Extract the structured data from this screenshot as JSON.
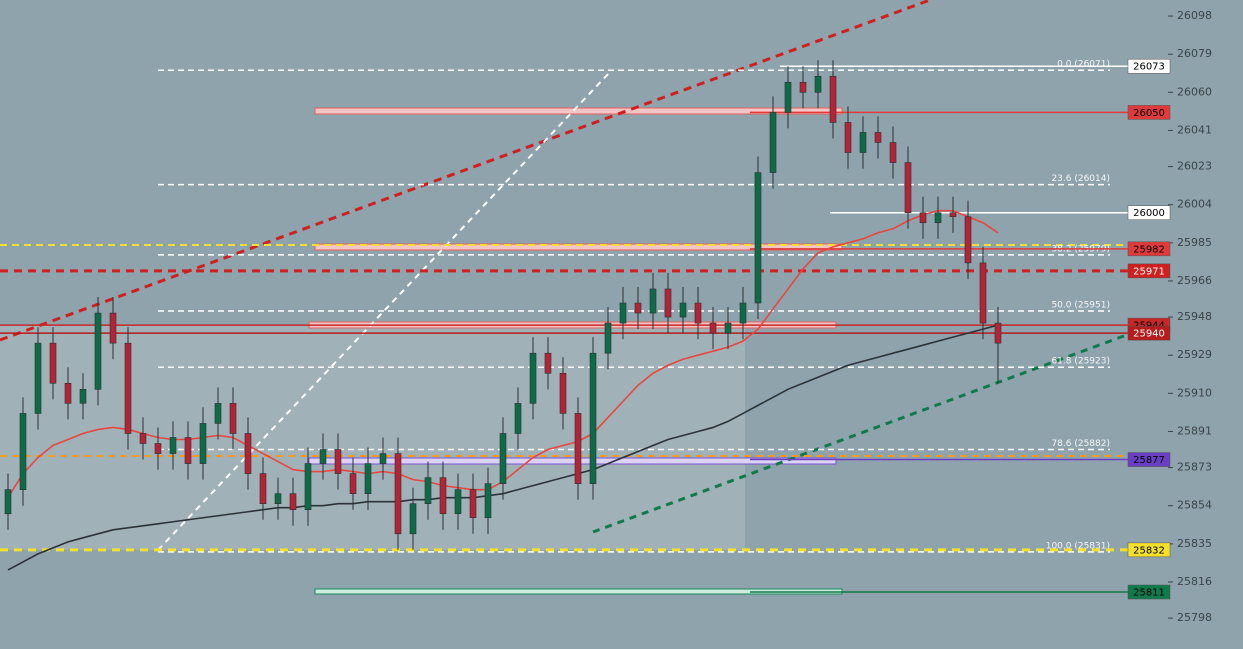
{
  "chart_data": {
    "type": "candlestick",
    "ylim": [
      25782.6,
      26106
    ],
    "yticks": [
      26098,
      26079,
      26060,
      26041,
      26023,
      26004,
      25985,
      25966,
      25948,
      25929,
      25910,
      25891,
      25873,
      25854,
      25835,
      25816,
      25798
    ],
    "open": [
      25850,
      25862,
      25900,
      25935,
      25915,
      25905,
      25912,
      25950,
      25935,
      25890,
      25885,
      25880,
      25888,
      25875,
      25895,
      25905,
      25890,
      25870,
      25855,
      25860,
      25852,
      25875,
      25882,
      25870,
      25860,
      25875,
      25880,
      25840,
      25855,
      25868,
      25850,
      25862,
      25848,
      25865,
      25890,
      25905,
      25930,
      25920,
      25900,
      25865,
      25930,
      25945,
      25955,
      25950,
      25962,
      25948,
      25955,
      25945,
      25940,
      25945,
      25955,
      26020,
      26050,
      26065,
      26060,
      26068,
      26045,
      26030,
      26040,
      26035,
      26025,
      26000,
      25995,
      26000,
      25998,
      25975,
      25945
    ],
    "high": [
      25870,
      25908,
      25943,
      25943,
      25923,
      25920,
      25958,
      25958,
      25943,
      25898,
      25893,
      25896,
      25896,
      25903,
      25913,
      25913,
      25898,
      25878,
      25868,
      25868,
      25883,
      25890,
      25890,
      25878,
      25883,
      25888,
      25888,
      25863,
      25876,
      25876,
      25870,
      25870,
      25873,
      25898,
      25913,
      25938,
      25938,
      25928,
      25908,
      25938,
      25953,
      25963,
      25963,
      25970,
      25970,
      25963,
      25963,
      25953,
      25953,
      25963,
      26028,
      26058,
      26073,
      26073,
      26076,
      26076,
      26053,
      26048,
      26048,
      26043,
      26033,
      26008,
      26008,
      26008,
      26006,
      25983,
      25953
    ],
    "low": [
      25842,
      25854,
      25892,
      25907,
      25897,
      25897,
      25904,
      25927,
      25882,
      25877,
      25872,
      25872,
      25867,
      25867,
      25887,
      25882,
      25862,
      25847,
      25847,
      25844,
      25844,
      25867,
      25862,
      25852,
      25852,
      25867,
      25832,
      25832,
      25847,
      25842,
      25842,
      25840,
      25840,
      25857,
      25882,
      25897,
      25912,
      25892,
      25857,
      25857,
      25922,
      25937,
      25942,
      25942,
      25940,
      25940,
      25937,
      25932,
      25932,
      25937,
      25947,
      26012,
      26042,
      26052,
      26052,
      26037,
      26022,
      26022,
      26027,
      26017,
      25992,
      25987,
      25987,
      25990,
      25967,
      25937,
      25915
    ],
    "close": [
      25862,
      25900,
      25935,
      25915,
      25905,
      25912,
      25950,
      25935,
      25890,
      25885,
      25880,
      25888,
      25875,
      25895,
      25905,
      25890,
      25870,
      25855,
      25860,
      25852,
      25875,
      25882,
      25870,
      25860,
      25875,
      25880,
      25840,
      25855,
      25868,
      25850,
      25862,
      25848,
      25865,
      25890,
      25905,
      25930,
      25920,
      25900,
      25865,
      25930,
      25945,
      25955,
      25950,
      25962,
      25948,
      25955,
      25945,
      25940,
      25945,
      25955,
      26020,
      26050,
      26065,
      26060,
      26068,
      26045,
      26030,
      26040,
      26035,
      26025,
      26000,
      25995,
      26000,
      25998,
      25975,
      25945,
      25935
    ],
    "up_color": "#0f6b47",
    "down_color": "#b32436",
    "moving_averages": [
      {
        "color": "#e8473f",
        "values": [
          25858,
          25870,
          25878,
          25884,
          25887,
          25890,
          25892,
          25893,
          25892,
          25890,
          25888,
          25887,
          25887,
          25888,
          25889,
          25888,
          25884,
          25880,
          25876,
          25872,
          25871,
          25871,
          25872,
          25871,
          25870,
          25871,
          25870,
          25867,
          25866,
          25864,
          25863,
          25862,
          25862,
          25866,
          25872,
          25878,
          25882,
          25884,
          25886,
          25890,
          25898,
          25906,
          25914,
          25920,
          25924,
          25927,
          25929,
          25931,
          25933,
          25936,
          25942,
          25952,
          25962,
          25972,
          25980,
          25983,
          25985,
          25987,
          25990,
          25992,
          25996,
          25999,
          26001,
          26001,
          25998,
          25995,
          25990
        ]
      },
      {
        "color": "#2c3338",
        "values": [
          25822,
          25826,
          25830,
          25833,
          25836,
          25838,
          25840,
          25842,
          25843,
          25844,
          25845,
          25846,
          25847,
          25848,
          25849,
          25850,
          25851,
          25852,
          25853,
          25853,
          25854,
          25854,
          25855,
          25855,
          25856,
          25856,
          25856,
          25857,
          25857,
          25858,
          25858,
          25858,
          25859,
          25860,
          25862,
          25864,
          25866,
          25868,
          25870,
          25872,
          25875,
          25878,
          25881,
          25884,
          25887,
          25889,
          25891,
          25893,
          25896,
          25900,
          25904,
          25908,
          25912,
          25915,
          25918,
          25921,
          25924,
          25926,
          25928,
          25930,
          25932,
          25934,
          25936,
          25938,
          25940,
          25942,
          25944
        ]
      }
    ],
    "fib_levels": [
      {
        "label": "0.0 (26071)",
        "price": 26071
      },
      {
        "label": "23.6 (26014)",
        "price": 26014
      },
      {
        "label": "38.2 (25979)",
        "price": 25979
      },
      {
        "label": "50.0 (25951)",
        "price": 25951
      },
      {
        "label": "61.8 (25923)",
        "price": 25923
      },
      {
        "label": "78.6 (25882)",
        "price": 25882
      },
      {
        "label": "100.0 (25831)",
        "price": 25831
      }
    ],
    "levels": [
      {
        "price": 26073,
        "color": "#ffffff",
        "text_color": "#000000",
        "dashed": false
      },
      {
        "price": 26050,
        "color": "#e03a3a",
        "text_color": "#000000",
        "dashed": false
      },
      {
        "price": 26000,
        "color": "#ffffff",
        "text_color": "#000000",
        "dashed": false
      },
      {
        "price": 25982,
        "color": "#e03a3a",
        "text_color": "#000000",
        "dashed": false
      },
      {
        "price": 25971,
        "color": "#d01f1f",
        "text_color": "#ffffff",
        "dashed": true
      },
      {
        "price": 25944,
        "color": "#c62828",
        "text_color": "#000000",
        "dashed": false
      },
      {
        "price": 25940,
        "color": "#b71c1c",
        "text_color": "#ffffff",
        "dashed": false
      },
      {
        "price": 25877,
        "color": "#6a3fc4",
        "text_color": "#000000",
        "dashed": false
      },
      {
        "price": 25832,
        "color": "#f5e12a",
        "text_color": "#000000",
        "dashed": true
      },
      {
        "price": 25811,
        "color": "#107a4c",
        "text_color": "#000000",
        "dashed": false
      }
    ]
  }
}
